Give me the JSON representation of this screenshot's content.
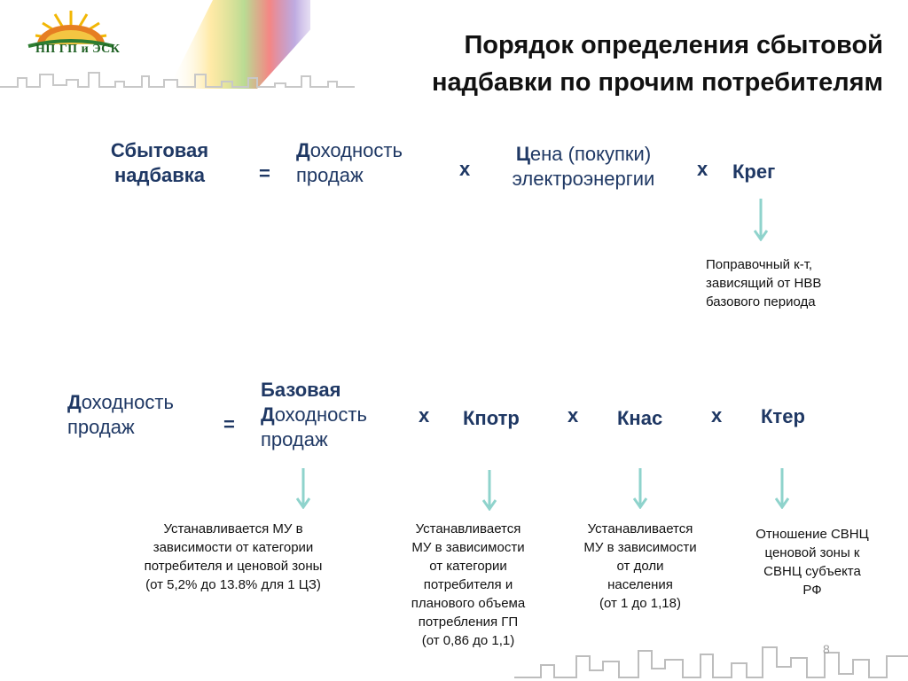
{
  "header": {
    "logo_text": "НП ГП и ЭСК",
    "title_line1": "Порядок определения сбытовой",
    "title_line2": "надбавки по прочим потребителям"
  },
  "formula1": {
    "lhs_line1": "Сбытовая",
    "lhs_line2": "надбавка",
    "eq": "=",
    "term1_cap": "Д",
    "term1_rest": "оходность",
    "term1_line2": "продаж",
    "x1": "x",
    "term2_cap": "Ц",
    "term2_rest": "ена (покупки)",
    "term2_line2": "электроэнергии",
    "x2": "x",
    "term3": "Крег",
    "note_term3": [
      "Поправочный к-т,",
      "зависящий от НВВ",
      "базового периода"
    ]
  },
  "formula2": {
    "lhs_cap": "Д",
    "lhs_rest": "оходность",
    "lhs_line2": "продаж",
    "eq": "=",
    "term1_line1": "Базовая",
    "term1_cap": "Д",
    "term1_rest": "оходность",
    "term1_line3": "продаж",
    "x1": "x",
    "term2": "Кпотр",
    "x2": "x",
    "term3": "Кнас",
    "x3": "x",
    "term4": "Ктер",
    "note_term1": [
      "Устанавливается МУ в",
      "зависимости от категории",
      "потребителя и ценовой зоны",
      "(от 5,2% до 13.8% для 1 ЦЗ)"
    ],
    "note_term2": [
      "Устанавливается",
      "МУ в зависимости",
      "от категории",
      "потребителя и",
      "планового объема",
      "потребления ГП",
      "(от 0,86 до 1,1)"
    ],
    "note_term3": [
      "Устанавливается",
      "МУ в зависимости",
      "от доли",
      "населения",
      "(от 1 до 1,18)"
    ],
    "note_term4": [
      "Отношение СВНЦ",
      "ценовой зоны к",
      "СВНЦ субъекта",
      "РФ"
    ]
  },
  "footer": {
    "page_number": "8"
  },
  "colors": {
    "text_navy": "#1f3864",
    "arrow": "#8fd3cc",
    "title": "#111111"
  }
}
